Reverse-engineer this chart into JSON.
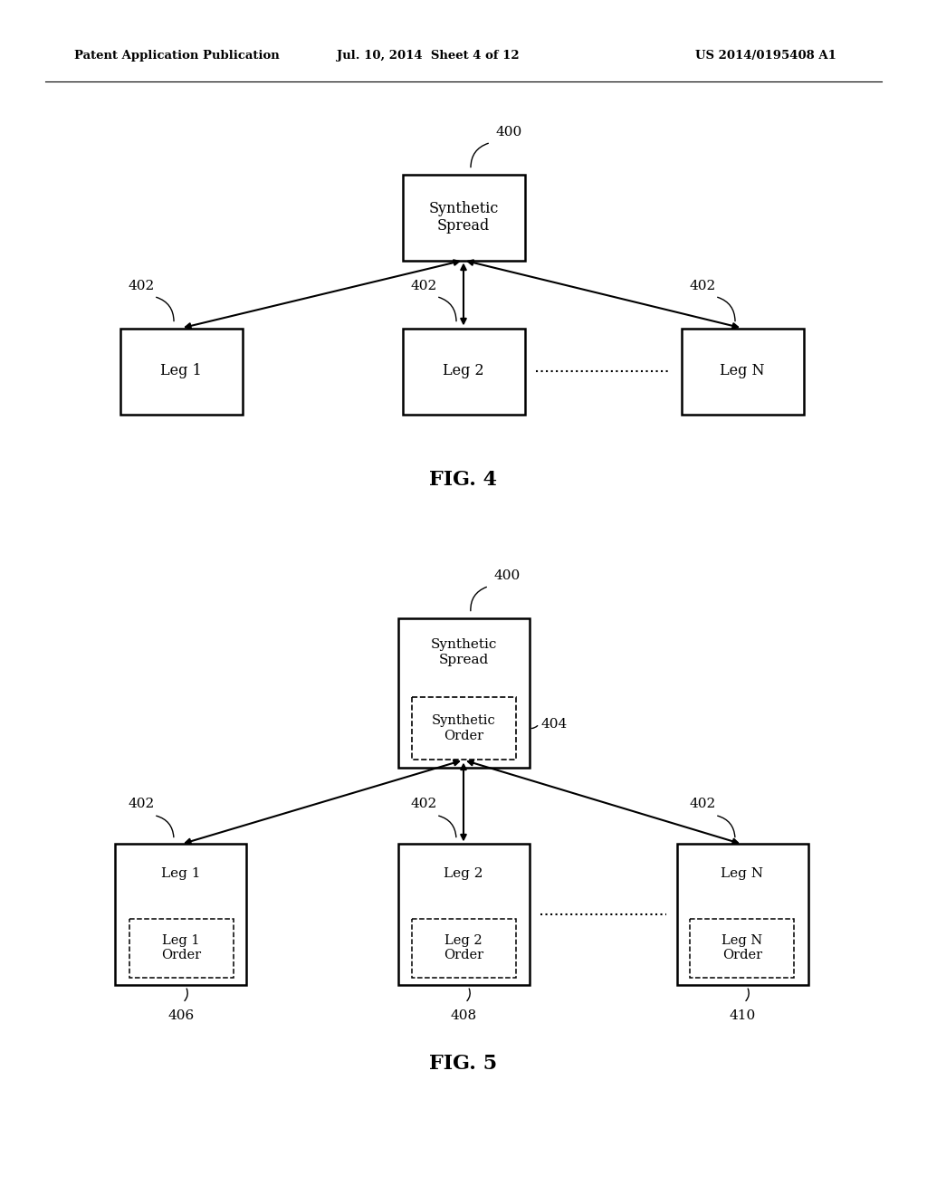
{
  "background_color": "#ffffff",
  "header_left": "Patent Application Publication",
  "header_mid": "Jul. 10, 2014  Sheet 4 of 12",
  "header_right": "US 2014/0195408 A1",
  "fig4_caption": "FIG. 4",
  "fig5_caption": "FIG. 5",
  "box_color": "#ffffff",
  "line_color": "#000000"
}
